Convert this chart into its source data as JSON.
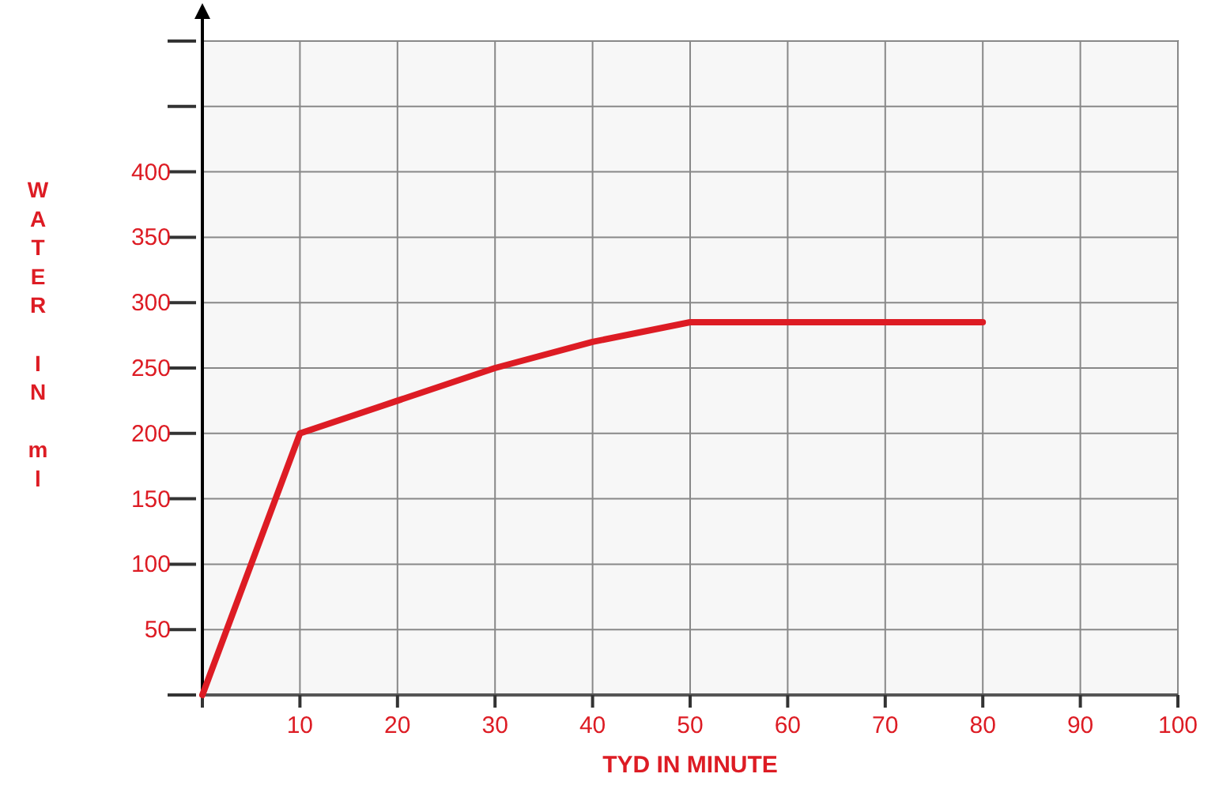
{
  "chart_data": {
    "type": "line",
    "xlabel": "TYD IN MINUTE",
    "ylabel": "WATER IN ml",
    "x": [
      0,
      10,
      20,
      30,
      40,
      50,
      80
    ],
    "series": [
      {
        "color": "#dd1c24",
        "values": [
          0,
          200,
          225,
          250,
          270,
          285,
          285
        ]
      }
    ],
    "xlim": [
      0,
      100
    ],
    "ylim": [
      0,
      500
    ],
    "xticks": [
      {
        "value": 0,
        "label": null
      },
      10,
      20,
      30,
      40,
      50,
      60,
      70,
      80,
      90,
      100
    ],
    "yticks": [
      {
        "value": 0,
        "label": null
      },
      50,
      100,
      150,
      200,
      250,
      300,
      350,
      400,
      {
        "value": 450,
        "label": null
      },
      {
        "value": 500,
        "label": null
      }
    ],
    "grid": true,
    "marker": "none",
    "line_style": "solid"
  }
}
